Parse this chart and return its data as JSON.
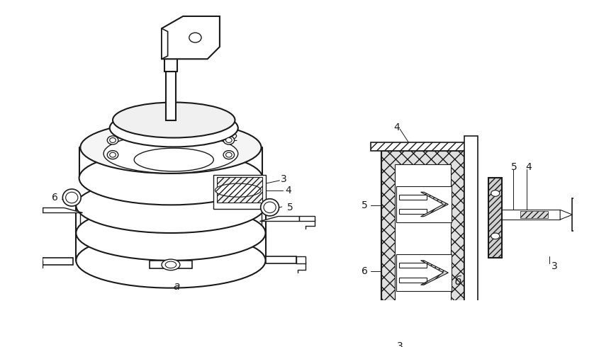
{
  "bg_color": "#ffffff",
  "lc": "#1a1a1a",
  "fig_width": 8.69,
  "fig_height": 4.9,
  "dpi": 100,
  "font_size": 9.5
}
